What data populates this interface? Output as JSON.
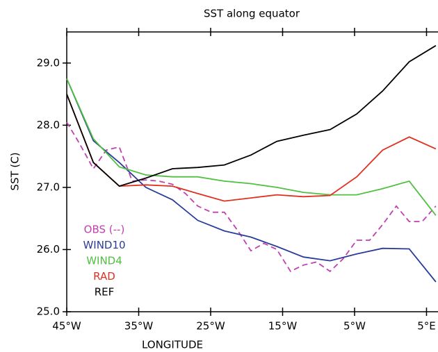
{
  "chart_data": {
    "type": "line",
    "title": "SST along equator",
    "x_label": "LONGITUDE",
    "y_label": "SST (C)",
    "xlim": [
      -45,
      6.5
    ],
    "ylim": [
      25,
      29.5
    ],
    "xticks": [
      {
        "value": -45,
        "label": "45°W"
      },
      {
        "value": -35,
        "label": "35°W"
      },
      {
        "value": -25,
        "label": "25°W"
      },
      {
        "value": -15,
        "label": "15°W"
      },
      {
        "value": -5,
        "label": "5°W"
      },
      {
        "value": 5,
        "label": "5°E"
      }
    ],
    "yticks": [
      {
        "value": 25,
        "label": "25.0"
      },
      {
        "value": 26,
        "label": "26.0"
      },
      {
        "value": 27,
        "label": "27.0"
      },
      {
        "value": 28,
        "label": "28.0"
      },
      {
        "value": 29,
        "label": "29.0"
      }
    ],
    "legend": "lower left",
    "series": [
      {
        "name": "OBS (--)",
        "color": "#c040b0",
        "dashed": true,
        "x": [
          -45,
          -43.2,
          -41.3,
          -39.5,
          -37.7,
          -35.9,
          -34.0,
          -32.2,
          -30.3,
          -28.5,
          -26.8,
          -24.9,
          -23.1,
          -21.2,
          -19.4,
          -17.6,
          -15.8,
          -13.9,
          -12.1,
          -10.3,
          -8.4,
          -6.6,
          -4.7,
          -2.9,
          -1.1,
          0.8,
          2.6,
          4.4,
          6.3
        ],
        "values": [
          28.05,
          27.7,
          27.3,
          27.6,
          27.65,
          27.1,
          27.12,
          27.1,
          27.05,
          26.9,
          26.7,
          26.6,
          26.6,
          26.3,
          25.98,
          26.1,
          26.0,
          25.65,
          25.75,
          25.8,
          25.65,
          25.85,
          26.15,
          26.15,
          26.4,
          26.7,
          26.45,
          26.45,
          26.7
        ]
      },
      {
        "name": "WIND10",
        "color": "#2a3c9a",
        "x": [
          -45,
          -41.3,
          -37.7,
          -34.0,
          -30.3,
          -26.8,
          -23.1,
          -19.4,
          -15.8,
          -12.1,
          -8.4,
          -4.7,
          -1.1,
          2.6,
          6.3
        ],
        "values": [
          28.75,
          27.75,
          27.4,
          27.0,
          26.8,
          26.47,
          26.3,
          26.2,
          26.05,
          25.88,
          25.82,
          25.93,
          26.02,
          26.01,
          25.48
        ]
      },
      {
        "name": "WIND4",
        "color": "#50c040",
        "x": [
          -45,
          -41.3,
          -37.7,
          -34.0,
          -30.3,
          -26.8,
          -23.1,
          -19.4,
          -15.8,
          -12.1,
          -8.4,
          -4.7,
          -1.1,
          2.6,
          6.3
        ],
        "values": [
          28.75,
          27.78,
          27.33,
          27.2,
          27.17,
          27.17,
          27.1,
          27.06,
          27.0,
          26.92,
          26.88,
          26.88,
          26.98,
          27.1,
          26.55
        ]
      },
      {
        "name": "RAD",
        "color": "#e03020",
        "x": [
          -45,
          -41.3,
          -37.7,
          -34.0,
          -30.3,
          -26.8,
          -23.1,
          -19.4,
          -15.8,
          -12.1,
          -8.4,
          -4.7,
          -1.1,
          2.6,
          6.3
        ],
        "values": [
          28.5,
          27.4,
          27.02,
          27.04,
          27.02,
          26.9,
          26.78,
          26.83,
          26.88,
          26.85,
          26.87,
          27.17,
          27.6,
          27.81,
          27.62
        ]
      },
      {
        "name": "REF",
        "color": "#000000",
        "x": [
          -45,
          -41.3,
          -37.7,
          -34.0,
          -30.3,
          -26.8,
          -23.1,
          -19.4,
          -15.8,
          -12.1,
          -8.4,
          -4.7,
          -1.1,
          2.6,
          6.3
        ],
        "values": [
          28.5,
          27.4,
          27.02,
          27.15,
          27.3,
          27.32,
          27.36,
          27.52,
          27.74,
          27.84,
          27.93,
          28.18,
          28.55,
          29.02,
          29.28
        ]
      }
    ]
  }
}
